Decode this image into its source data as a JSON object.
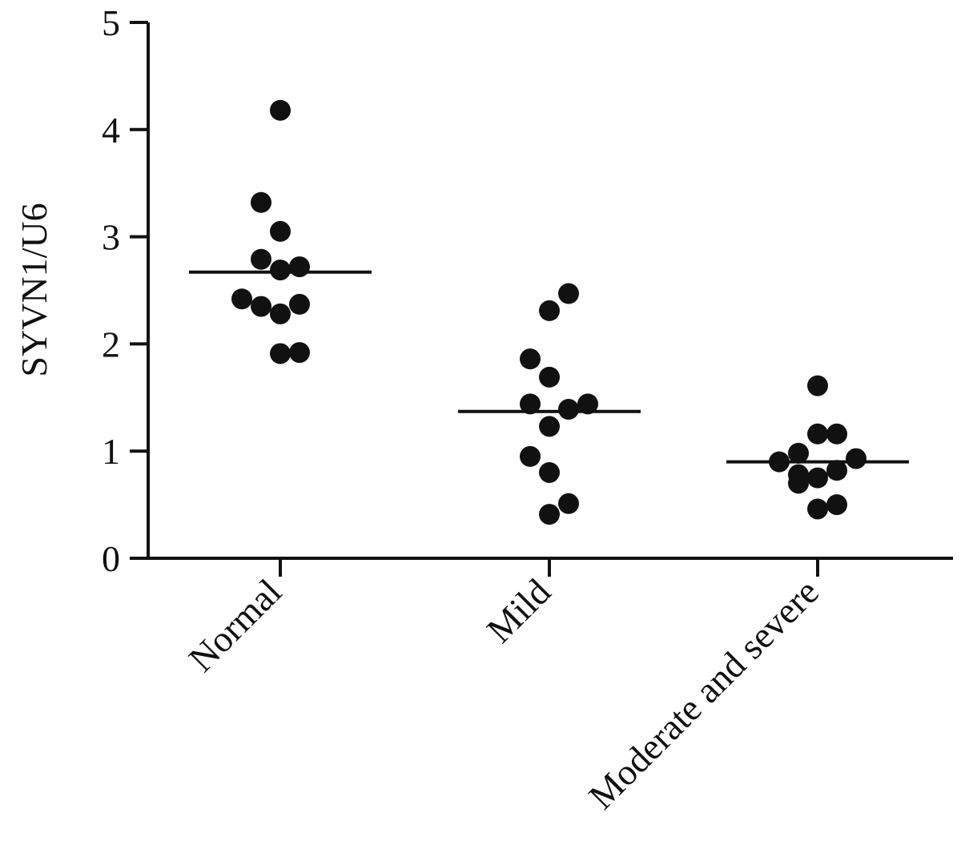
{
  "chart_data": {
    "type": "scatter",
    "xlabel": "",
    "ylabel": "SYVN1/U6",
    "ylim": [
      0,
      5
    ],
    "yticks": [
      0,
      1,
      2,
      3,
      4,
      5
    ],
    "categories": [
      "Normal",
      "Mild",
      "Moderate and severe"
    ],
    "grid": false,
    "marker_color": "#111111",
    "groups": [
      {
        "category": "Normal",
        "median": 2.67,
        "points": [
          {
            "offset": 0.0,
            "value": 4.18
          },
          {
            "offset": -0.12,
            "value": 3.32
          },
          {
            "offset": 0.0,
            "value": 3.05
          },
          {
            "offset": -0.12,
            "value": 2.79
          },
          {
            "offset": 0.0,
            "value": 2.69
          },
          {
            "offset": 0.12,
            "value": 2.72
          },
          {
            "offset": -0.24,
            "value": 2.42
          },
          {
            "offset": -0.12,
            "value": 2.35
          },
          {
            "offset": 0.12,
            "value": 2.37
          },
          {
            "offset": 0.0,
            "value": 2.28
          },
          {
            "offset": 0.0,
            "value": 1.91
          },
          {
            "offset": 0.12,
            "value": 1.92
          }
        ]
      },
      {
        "category": "Mild",
        "median": 1.37,
        "points": [
          {
            "offset": 0.12,
            "value": 2.47
          },
          {
            "offset": 0.0,
            "value": 2.31
          },
          {
            "offset": -0.12,
            "value": 1.86
          },
          {
            "offset": 0.0,
            "value": 1.69
          },
          {
            "offset": -0.12,
            "value": 1.44
          },
          {
            "offset": 0.12,
            "value": 1.39
          },
          {
            "offset": 0.24,
            "value": 1.44
          },
          {
            "offset": 0.0,
            "value": 1.23
          },
          {
            "offset": -0.12,
            "value": 0.95
          },
          {
            "offset": 0.0,
            "value": 0.8
          },
          {
            "offset": 0.12,
            "value": 0.51
          },
          {
            "offset": 0.0,
            "value": 0.41
          }
        ]
      },
      {
        "category": "Moderate and severe",
        "median": 0.9,
        "points": [
          {
            "offset": 0.0,
            "value": 1.61
          },
          {
            "offset": 0.0,
            "value": 1.16
          },
          {
            "offset": 0.12,
            "value": 1.16
          },
          {
            "offset": -0.12,
            "value": 0.98
          },
          {
            "offset": -0.24,
            "value": 0.9
          },
          {
            "offset": 0.24,
            "value": 0.93
          },
          {
            "offset": 0.12,
            "value": 0.82
          },
          {
            "offset": -0.12,
            "value": 0.78
          },
          {
            "offset": 0.0,
            "value": 0.75
          },
          {
            "offset": -0.12,
            "value": 0.7
          },
          {
            "offset": 0.12,
            "value": 0.5
          },
          {
            "offset": 0.0,
            "value": 0.46
          }
        ]
      }
    ]
  }
}
